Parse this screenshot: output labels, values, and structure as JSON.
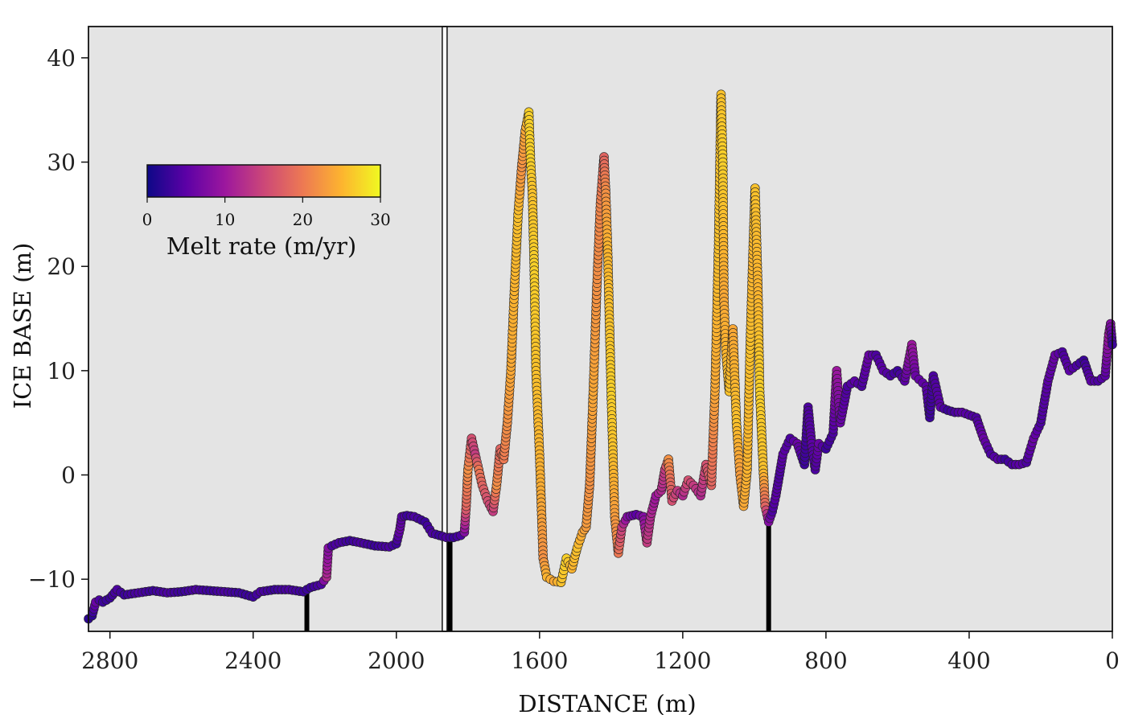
{
  "chart_data": {
    "type": "scatter",
    "title": "",
    "xlabel": "DISTANCE (m)",
    "ylabel": "ICE BASE (m)",
    "xlim": [
      2860,
      0
    ],
    "ylim": [
      -15,
      43
    ],
    "x_ticks": [
      2800,
      2400,
      2000,
      1600,
      1200,
      800,
      400,
      0
    ],
    "x_tick_labels": [
      "2800",
      "2400",
      "2000",
      "1600",
      "1200",
      "800",
      "400",
      "0"
    ],
    "y_ticks": [
      40,
      30,
      20,
      10,
      0,
      -10
    ],
    "y_tick_labels": [
      "40",
      "30",
      "20",
      "10",
      "0",
      "−10"
    ],
    "colorbar": {
      "title": "Melt rate (m/yr)",
      "range": [
        0,
        30
      ],
      "ticks": [
        0,
        10,
        20,
        30
      ],
      "tick_labels": [
        "0",
        "10",
        "20",
        "30"
      ],
      "colormap": [
        "#0d0887",
        "#5c01a6",
        "#9c179e",
        "#cc4778",
        "#ed7953",
        "#fdb42f",
        "#f0f921"
      ]
    },
    "divider_x": 1865,
    "grounding_markers_x": [
      2250,
      1850,
      960
    ],
    "profile": [
      [
        2860,
        -13.8,
        2
      ],
      [
        2850,
        -13.5,
        2
      ],
      [
        2840,
        -12.2,
        6
      ],
      [
        2830,
        -12.0,
        4
      ],
      [
        2820,
        -12.2,
        3
      ],
      [
        2800,
        -11.8,
        3
      ],
      [
        2780,
        -11.0,
        4
      ],
      [
        2760,
        -11.5,
        3
      ],
      [
        2720,
        -11.3,
        4
      ],
      [
        2680,
        -11.1,
        3
      ],
      [
        2640,
        -11.3,
        4
      ],
      [
        2600,
        -11.2,
        3
      ],
      [
        2560,
        -11.0,
        4
      ],
      [
        2520,
        -11.1,
        3
      ],
      [
        2480,
        -11.2,
        4
      ],
      [
        2440,
        -11.3,
        3
      ],
      [
        2400,
        -11.7,
        3
      ],
      [
        2380,
        -11.2,
        4
      ],
      [
        2340,
        -11.0,
        3
      ],
      [
        2300,
        -11.0,
        4
      ],
      [
        2260,
        -11.2,
        3
      ],
      [
        2240,
        -10.8,
        3
      ],
      [
        2210,
        -10.5,
        4
      ],
      [
        2195,
        -9.8,
        12
      ],
      [
        2190,
        -7.0,
        8
      ],
      [
        2180,
        -6.8,
        4
      ],
      [
        2160,
        -6.5,
        4
      ],
      [
        2130,
        -6.3,
        3
      ],
      [
        2100,
        -6.5,
        4
      ],
      [
        2060,
        -6.8,
        3
      ],
      [
        2020,
        -6.9,
        4
      ],
      [
        2000,
        -6.6,
        3
      ],
      [
        1990,
        -5.2,
        6
      ],
      [
        1985,
        -4.0,
        5
      ],
      [
        1970,
        -3.9,
        3
      ],
      [
        1950,
        -4.0,
        4
      ],
      [
        1920,
        -4.5,
        3
      ],
      [
        1900,
        -5.6,
        4
      ],
      [
        1880,
        -5.8,
        3
      ],
      [
        1860,
        -6.0,
        4
      ],
      [
        1840,
        -6.0,
        3
      ],
      [
        1820,
        -5.8,
        4
      ],
      [
        1810,
        -5.5,
        8
      ],
      [
        1805,
        -3.0,
        18
      ],
      [
        1800,
        0.5,
        22
      ],
      [
        1790,
        3.5,
        16
      ],
      [
        1780,
        2.0,
        14
      ],
      [
        1770,
        0.5,
        20
      ],
      [
        1760,
        -1.0,
        18
      ],
      [
        1745,
        -2.5,
        16
      ],
      [
        1730,
        -3.5,
        14
      ],
      [
        1720,
        -1.0,
        22
      ],
      [
        1710,
        2.5,
        18
      ],
      [
        1700,
        1.5,
        20
      ],
      [
        1690,
        5.0,
        22
      ],
      [
        1680,
        10.0,
        24
      ],
      [
        1670,
        18.0,
        25
      ],
      [
        1660,
        25.0,
        26
      ],
      [
        1650,
        29.5,
        22
      ],
      [
        1640,
        33.0,
        24
      ],
      [
        1630,
        34.8,
        27
      ],
      [
        1625,
        30.0,
        27
      ],
      [
        1620,
        27.0,
        26
      ],
      [
        1615,
        20.0,
        27
      ],
      [
        1610,
        10.0,
        26
      ],
      [
        1600,
        2.0,
        25
      ],
      [
        1595,
        -3.0,
        24
      ],
      [
        1590,
        -8.0,
        22
      ],
      [
        1580,
        -9.8,
        25
      ],
      [
        1560,
        -10.2,
        24
      ],
      [
        1540,
        -10.3,
        26
      ],
      [
        1525,
        -8.0,
        27
      ],
      [
        1510,
        -9.0,
        25
      ],
      [
        1495,
        -7.0,
        26
      ],
      [
        1480,
        -5.5,
        24
      ],
      [
        1470,
        -5.0,
        23
      ],
      [
        1460,
        -1.0,
        22
      ],
      [
        1450,
        8.0,
        24
      ],
      [
        1440,
        18.0,
        22
      ],
      [
        1430,
        26.0,
        21
      ],
      [
        1420,
        30.5,
        18
      ],
      [
        1415,
        27.0,
        22
      ],
      [
        1410,
        22.0,
        25
      ],
      [
        1405,
        15.0,
        26
      ],
      [
        1400,
        8.0,
        27
      ],
      [
        1395,
        2.0,
        26
      ],
      [
        1390,
        -4.0,
        23
      ],
      [
        1380,
        -7.5,
        20
      ],
      [
        1370,
        -5.0,
        14
      ],
      [
        1355,
        -4.0,
        8
      ],
      [
        1330,
        -3.8,
        5
      ],
      [
        1310,
        -4.0,
        8
      ],
      [
        1300,
        -6.5,
        14
      ],
      [
        1290,
        -4.0,
        12
      ],
      [
        1275,
        -2.0,
        10
      ],
      [
        1260,
        -1.5,
        12
      ],
      [
        1250,
        0.5,
        14
      ],
      [
        1240,
        1.5,
        22
      ],
      [
        1230,
        -2.5,
        16
      ],
      [
        1215,
        -1.5,
        14
      ],
      [
        1200,
        -2.0,
        12
      ],
      [
        1185,
        -0.5,
        16
      ],
      [
        1170,
        -1.0,
        14
      ],
      [
        1150,
        -2.0,
        12
      ],
      [
        1135,
        1.0,
        16
      ],
      [
        1120,
        -1.0,
        18
      ],
      [
        1110,
        8.0,
        24
      ],
      [
        1100,
        22.0,
        26
      ],
      [
        1093,
        36.5,
        26
      ],
      [
        1088,
        30.0,
        27
      ],
      [
        1085,
        17.0,
        24
      ],
      [
        1080,
        12.0,
        25
      ],
      [
        1070,
        8.0,
        26
      ],
      [
        1060,
        14.0,
        24
      ],
      [
        1050,
        5.0,
        26
      ],
      [
        1040,
        0.0,
        23
      ],
      [
        1030,
        -3.0,
        24
      ],
      [
        1020,
        0.5,
        25
      ],
      [
        1012,
        12.0,
        26
      ],
      [
        1005,
        20.0,
        25
      ],
      [
        998,
        27.5,
        26
      ],
      [
        990,
        18.0,
        25
      ],
      [
        985,
        8.0,
        27
      ],
      [
        975,
        0.5,
        26
      ],
      [
        970,
        -3.0,
        18
      ],
      [
        960,
        -4.5,
        8
      ],
      [
        950,
        -3.5,
        4
      ],
      [
        940,
        -2.0,
        5
      ],
      [
        930,
        0.0,
        4
      ],
      [
        920,
        2.0,
        5
      ],
      [
        900,
        3.5,
        4
      ],
      [
        880,
        3.0,
        6
      ],
      [
        860,
        1.0,
        3
      ],
      [
        850,
        6.5,
        4
      ],
      [
        840,
        3.0,
        5
      ],
      [
        830,
        0.5,
        4
      ],
      [
        820,
        3.0,
        6
      ],
      [
        800,
        2.5,
        3
      ],
      [
        780,
        4.0,
        4
      ],
      [
        770,
        10.0,
        10
      ],
      [
        760,
        5.0,
        6
      ],
      [
        740,
        8.5,
        4
      ],
      [
        720,
        9.0,
        5
      ],
      [
        700,
        8.5,
        4
      ],
      [
        680,
        11.5,
        6
      ],
      [
        660,
        11.5,
        4
      ],
      [
        640,
        10.0,
        5
      ],
      [
        620,
        9.5,
        4
      ],
      [
        600,
        10.0,
        3
      ],
      [
        580,
        9.0,
        5
      ],
      [
        560,
        12.5,
        10
      ],
      [
        550,
        9.5,
        6
      ],
      [
        520,
        8.5,
        5
      ],
      [
        510,
        5.5,
        3
      ],
      [
        500,
        9.5,
        4
      ],
      [
        480,
        6.5,
        5
      ],
      [
        460,
        6.2,
        3
      ],
      [
        440,
        6.0,
        4
      ],
      [
        420,
        6.0,
        5
      ],
      [
        380,
        5.5,
        4
      ],
      [
        360,
        3.5,
        6
      ],
      [
        340,
        2.0,
        4
      ],
      [
        320,
        1.5,
        5
      ],
      [
        300,
        1.5,
        3
      ],
      [
        280,
        1.0,
        4
      ],
      [
        260,
        1.0,
        5
      ],
      [
        240,
        1.2,
        4
      ],
      [
        220,
        3.5,
        6
      ],
      [
        200,
        5.0,
        4
      ],
      [
        180,
        9.0,
        5
      ],
      [
        160,
        11.5,
        6
      ],
      [
        140,
        11.8,
        4
      ],
      [
        120,
        10.0,
        5
      ],
      [
        100,
        10.5,
        4
      ],
      [
        80,
        11.0,
        3
      ],
      [
        60,
        9.0,
        5
      ],
      [
        40,
        9.0,
        4
      ],
      [
        20,
        9.5,
        5
      ],
      [
        10,
        13.5,
        10
      ],
      [
        5,
        14.5,
        8
      ],
      [
        0,
        12.5,
        3
      ]
    ]
  }
}
